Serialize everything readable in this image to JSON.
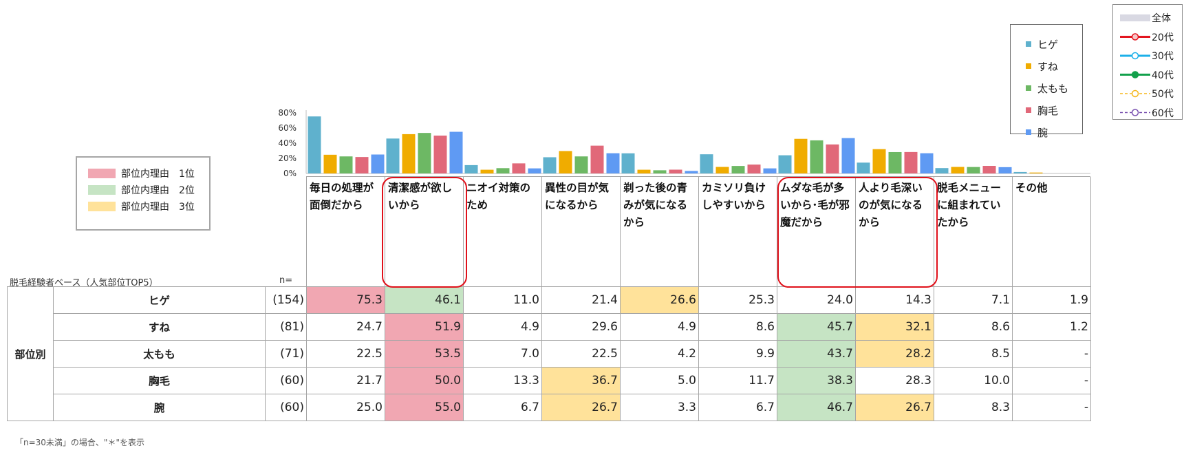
{
  "chart_data": {
    "type": "bar",
    "categories": [
      "毎日の処理が面倒だから",
      "清潔感が欲しいから",
      "ニオイ対策のため",
      "異性の目が気になるから",
      "剃った後の青みが気になるから",
      "カミソリ負けしやすいから",
      "ムダな毛が多いから･毛が邪魔だから",
      "人より毛深いのが気になるから",
      "脱毛メニューに組まれていたから",
      "その他"
    ],
    "series": [
      {
        "name": "ヒゲ",
        "n": "(154)",
        "color": "#5fb1cd",
        "values": [
          75.3,
          46.1,
          11.0,
          21.4,
          26.6,
          25.3,
          24.0,
          14.3,
          7.1,
          1.9
        ],
        "display": [
          "75.3",
          "46.1",
          "11.0",
          "21.4",
          "26.6",
          "25.3",
          "24.0",
          "14.3",
          "7.1",
          "1.9"
        ],
        "rank": [
          1,
          2,
          0,
          0,
          3,
          0,
          0,
          0,
          0,
          0
        ]
      },
      {
        "name": "すね",
        "n": "(81)",
        "color": "#f0ac00",
        "values": [
          24.7,
          51.9,
          4.9,
          29.6,
          4.9,
          8.6,
          45.7,
          32.1,
          8.6,
          1.2
        ],
        "display": [
          "24.7",
          "51.9",
          "4.9",
          "29.6",
          "4.9",
          "8.6",
          "45.7",
          "32.1",
          "8.6",
          "1.2"
        ],
        "rank": [
          0,
          1,
          0,
          0,
          0,
          0,
          2,
          3,
          0,
          0
        ]
      },
      {
        "name": "太もも",
        "n": "(71)",
        "color": "#6db864",
        "values": [
          22.5,
          53.5,
          7.0,
          22.5,
          4.2,
          9.9,
          43.7,
          28.2,
          8.5,
          0
        ],
        "display": [
          "22.5",
          "53.5",
          "7.0",
          "22.5",
          "4.2",
          "9.9",
          "43.7",
          "28.2",
          "8.5",
          "-"
        ],
        "rank": [
          0,
          1,
          0,
          0,
          0,
          0,
          2,
          3,
          0,
          0
        ]
      },
      {
        "name": "胸毛",
        "n": "(60)",
        "color": "#e16879",
        "values": [
          21.7,
          50.0,
          13.3,
          36.7,
          5.0,
          11.7,
          38.3,
          28.3,
          10.0,
          0
        ],
        "display": [
          "21.7",
          "50.0",
          "13.3",
          "36.7",
          "5.0",
          "11.7",
          "38.3",
          "28.3",
          "10.0",
          "-"
        ],
        "rank": [
          0,
          1,
          0,
          3,
          0,
          0,
          2,
          0,
          0,
          0
        ]
      },
      {
        "name": "腕",
        "n": "(60)",
        "color": "#5f9af3",
        "values": [
          25.0,
          55.0,
          6.7,
          26.7,
          3.3,
          6.7,
          46.7,
          26.7,
          8.3,
          0
        ],
        "display": [
          "25.0",
          "55.0",
          "6.7",
          "26.7",
          "3.3",
          "6.7",
          "46.7",
          "26.7",
          "8.3",
          "-"
        ],
        "rank": [
          0,
          1,
          0,
          3,
          0,
          0,
          2,
          3,
          0,
          0
        ]
      }
    ],
    "y_ticks": [
      "0%",
      "20%",
      "40%",
      "60%",
      "80%"
    ],
    "ylim": [
      0,
      80
    ],
    "grid": false,
    "legend_position": "top-right"
  },
  "line_legend": [
    {
      "label": "全体",
      "color": "#d9d9e3",
      "style": "band"
    },
    {
      "label": "20代",
      "color": "#e3151f",
      "style": "solid"
    },
    {
      "label": "30代",
      "color": "#1cb0e9",
      "style": "solid"
    },
    {
      "label": "40代",
      "color": "#12a04b",
      "style": "solid"
    },
    {
      "label": "50代",
      "color": "#f5b71a",
      "style": "dashed"
    },
    {
      "label": "60代",
      "color": "#7a52b0",
      "style": "dashed"
    }
  ],
  "rank_legend": [
    {
      "label": "部位内理由　1位",
      "color": "#f1a7b2"
    },
    {
      "label": "部位内理由　2位",
      "color": "#c6e4c4"
    },
    {
      "label": "部位内理由　3位",
      "color": "#ffe29a"
    }
  ],
  "table": {
    "base_label": "脱毛経験者ベース（人気部位TOP5）",
    "n_label": "n=",
    "group_label": "部位別"
  },
  "footnote": "「n=30未満」の場合、\"＊\"を表示",
  "colors": {
    "rank1": "#f1a7b2",
    "rank2": "#c6e4c4",
    "rank3": "#ffe29a",
    "highlight": "#e0101a"
  }
}
